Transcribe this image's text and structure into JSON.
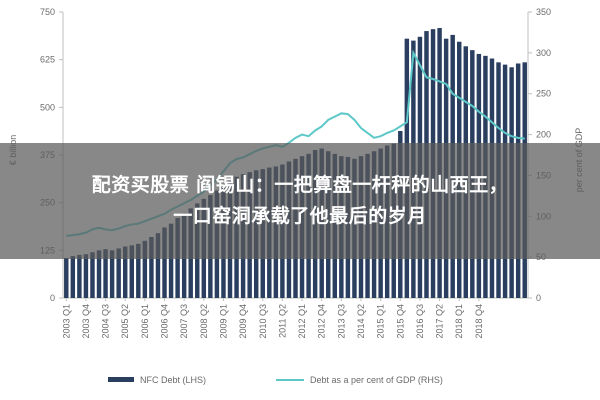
{
  "overlay": {
    "line1": "配资买股票 阎锡山：一把算盘一杆秤的山西王，",
    "line2": "一口窑洞承载了他最后的岁月"
  },
  "colors": {
    "bar": "#2a3f5f",
    "line": "#5ec8c8",
    "axis": "#bfbfbf",
    "text": "#6a6a6a"
  },
  "chart_data": {
    "type": "bar-line",
    "legend": [
      "NFC Debt (LHS)",
      "Debt as a per cent of GDP (RHS)"
    ],
    "legend_position": "bottom",
    "y_left_label": "€ billion",
    "y_right_label": "per cent of GDP",
    "y_left_ticks": [
      "0",
      "125",
      "250",
      "375",
      "500",
      "625",
      "750"
    ],
    "y_right_ticks": [
      "0",
      "50",
      "100",
      "150",
      "200",
      "250",
      "300",
      "350"
    ],
    "y_left_range": [
      0,
      750
    ],
    "y_right_range": [
      0,
      350
    ],
    "x_tick_labels": [
      "2003 Q1",
      "2003 Q4",
      "2004 Q3",
      "2005 Q2",
      "2006 Q1",
      "2006 Q4",
      "2007 Q3",
      "2008 Q2",
      "2009 Q1",
      "2009 Q4",
      "2010 Q3",
      "2011 Q2",
      "2012 Q1",
      "2012 Q4",
      "2013 Q3",
      "2014 Q2",
      "2015 Q1",
      "2015 Q4",
      "2016 Q3",
      "2017 Q2",
      "2018 Q1",
      "2018 Q4"
    ],
    "x_tick_every": 3,
    "series": [
      {
        "name": "NFC Debt (LHS)",
        "axis": "left",
        "type": "bar",
        "values": [
          105,
          110,
          113,
          115,
          120,
          125,
          128,
          125,
          130,
          135,
          138,
          142,
          150,
          160,
          170,
          185,
          195,
          210,
          222,
          235,
          248,
          260,
          270,
          282,
          295,
          310,
          318,
          325,
          330,
          335,
          338,
          342,
          345,
          350,
          358,
          365,
          372,
          378,
          388,
          392,
          385,
          378,
          372,
          370,
          365,
          372,
          378,
          385,
          392,
          400,
          405,
          438,
          680,
          675,
          685,
          700,
          705,
          708,
          680,
          690,
          672,
          660,
          650,
          640,
          635,
          628,
          618,
          612,
          605,
          615,
          618
        ]
      },
      {
        "name": "Debt as a per cent of GDP (RHS)",
        "axis": "right",
        "type": "line",
        "values": [
          76,
          77,
          78,
          80,
          84,
          86,
          84,
          83,
          85,
          88,
          90,
          91,
          94,
          97,
          100,
          103,
          108,
          112,
          116,
          120,
          125,
          130,
          138,
          145,
          155,
          165,
          170,
          172,
          176,
          180,
          183,
          185,
          187,
          185,
          190,
          196,
          200,
          198,
          205,
          210,
          218,
          222,
          226,
          225,
          218,
          208,
          202,
          196,
          198,
          202,
          205,
          210,
          215,
          300,
          285,
          270,
          268,
          265,
          262,
          250,
          245,
          240,
          235,
          228,
          222,
          215,
          208,
          202,
          198,
          196,
          195
        ]
      }
    ]
  }
}
